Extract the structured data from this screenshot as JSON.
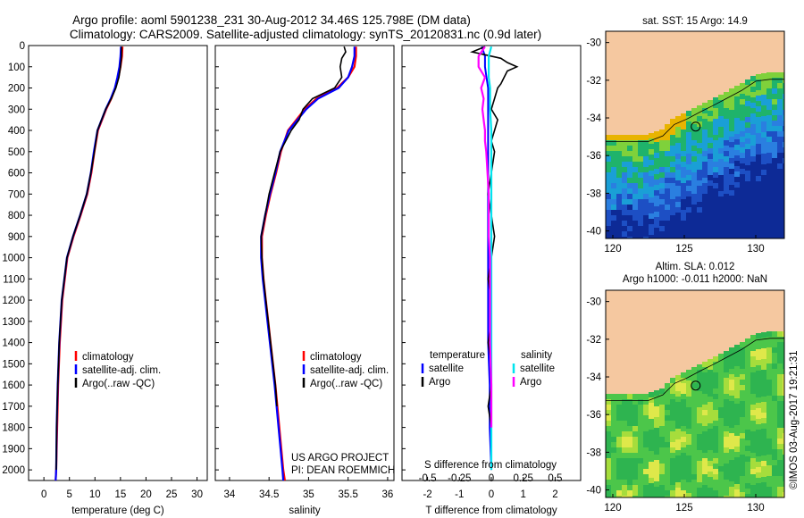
{
  "title": {
    "line1": "Argo profile: aoml 5901238_231 30-Aug-2012 34.46S 125.798E (DM data)",
    "line2": "Climatology: CARS2009. Satellite-adjusted climatology: synTS_20120831.nc (0.9d later)"
  },
  "depth_ticks": [
    "0",
    "100",
    "200",
    "300",
    "400",
    "500",
    "600",
    "700",
    "800",
    "900",
    "1000",
    "1100",
    "1200",
    "1300",
    "1400",
    "1500",
    "1600",
    "1700",
    "1800",
    "1900",
    "2000"
  ],
  "colors": {
    "climatology": "#ff0000",
    "satellite": "#0000ff",
    "argo": "#000000",
    "sal_satellite": "#00e5ee",
    "sal_argo": "#ff00ff",
    "land": "#f5c8a0"
  },
  "chart_data": [
    {
      "type": "line",
      "panel": "temperature",
      "xlabel": "temperature (deg C)",
      "xticks": [
        "0",
        "5",
        "10",
        "15",
        "20",
        "25",
        "30"
      ],
      "xlim": [
        -3,
        32
      ],
      "ylim": [
        0,
        2050
      ],
      "ylabel_axis": "depth",
      "legend": [
        "climatology",
        "satellite-adj. clim.",
        "Argo(..raw -QC)"
      ],
      "series": [
        {
          "name": "climatology",
          "depth": [
            5,
            50,
            100,
            150,
            200,
            250,
            300,
            400,
            500,
            600,
            700,
            800,
            900,
            1000,
            1200,
            1400,
            1600,
            1800,
            2000,
            2050
          ],
          "values": [
            15.4,
            15.3,
            15.0,
            14.6,
            14.0,
            13.2,
            12.2,
            10.6,
            9.9,
            9.3,
            8.5,
            7.2,
            5.8,
            4.6,
            3.6,
            3.1,
            2.8,
            2.6,
            2.4,
            2.3
          ]
        },
        {
          "name": "satellite-adj. clim.",
          "depth": [
            5,
            50,
            100,
            150,
            200,
            250,
            300,
            400,
            500,
            600,
            700,
            800,
            900,
            1000,
            1200,
            1400,
            1600,
            1800,
            2000,
            2050
          ],
          "values": [
            15.1,
            15.0,
            14.8,
            14.4,
            13.9,
            13.1,
            12.1,
            10.5,
            9.8,
            9.2,
            8.4,
            7.1,
            5.7,
            4.5,
            3.5,
            3.0,
            2.7,
            2.5,
            2.4,
            2.3
          ]
        },
        {
          "name": "Argo(..raw -QC)",
          "depth": [
            5,
            50,
            100,
            150,
            200,
            250,
            300,
            400,
            500,
            600,
            700,
            800,
            900,
            1000,
            1200,
            1400,
            1600,
            1800,
            2000
          ],
          "values": [
            15.2,
            15.2,
            15.0,
            14.7,
            14.1,
            13.2,
            12.1,
            10.5,
            9.9,
            9.2,
            8.4,
            7.1,
            5.7,
            4.5,
            3.5,
            3.0,
            2.7,
            2.5,
            2.4
          ]
        }
      ]
    },
    {
      "type": "line",
      "panel": "salinity",
      "xlabel": "salinity",
      "xticks": [
        "34",
        "34.5",
        "35",
        "35.5",
        "36"
      ],
      "xlim": [
        33.82,
        36.08
      ],
      "ylim": [
        0,
        2050
      ],
      "legend": [
        "climatology",
        "satellite-adj. clim.",
        "Argo(..raw -QC)"
      ],
      "annotation": [
        "US ARGO PROJECT",
        "PI: DEAN ROEMMICH"
      ],
      "series": [
        {
          "name": "climatology",
          "depth": [
            5,
            50,
            100,
            150,
            200,
            250,
            300,
            400,
            500,
            600,
            700,
            800,
            900,
            1000,
            1100,
            1200,
            1300,
            1400,
            1600,
            1800,
            2000,
            2050
          ],
          "values": [
            35.6,
            35.6,
            35.58,
            35.5,
            35.36,
            35.1,
            34.95,
            34.74,
            34.65,
            34.59,
            34.52,
            34.46,
            34.41,
            34.41,
            34.43,
            34.46,
            34.49,
            34.52,
            34.58,
            34.63,
            34.68,
            34.7
          ]
        },
        {
          "name": "satellite-adj. clim.",
          "depth": [
            5,
            50,
            100,
            150,
            200,
            250,
            300,
            400,
            500,
            600,
            700,
            800,
            900,
            1000,
            1100,
            1200,
            1300,
            1400,
            1600,
            1800,
            2000,
            2050
          ],
          "values": [
            35.58,
            35.58,
            35.55,
            35.5,
            35.38,
            35.12,
            34.97,
            34.75,
            34.64,
            34.58,
            34.51,
            34.45,
            34.4,
            34.4,
            34.42,
            34.45,
            34.48,
            34.51,
            34.57,
            34.62,
            34.67,
            34.68
          ]
        },
        {
          "name": "Argo(..raw -QC)",
          "depth": [
            5,
            30,
            60,
            100,
            150,
            200,
            250,
            300,
            350,
            400,
            500,
            600,
            700,
            800,
            900,
            1000,
            1100,
            1200,
            1300,
            1400,
            1600,
            1700
          ],
          "values": [
            35.45,
            35.47,
            35.42,
            35.4,
            35.42,
            35.33,
            35.05,
            34.93,
            34.88,
            34.78,
            34.64,
            34.57,
            34.5,
            34.45,
            34.4,
            34.41,
            34.43,
            34.46,
            34.49,
            34.52,
            34.58,
            34.6
          ]
        }
      ]
    },
    {
      "type": "line",
      "panel": "difference",
      "xlabel": "T difference from climatology",
      "xlabel2": "S difference from climatology",
      "xticks": [
        "-2",
        "-1",
        "0",
        "1",
        "2"
      ],
      "xticks2": [
        "-0.5",
        "-0.25",
        "0",
        "0.25",
        "0.5"
      ],
      "xlim": [
        -2.8,
        2.8
      ],
      "ylim": [
        0,
        2050
      ],
      "legend": {
        "temperature": "temperature",
        "salinity": "salinity",
        "t_satellite": "satellite",
        "t_argo": "Argo",
        "s_satellite": "satellite",
        "s_argo": "Argo"
      },
      "series": [
        {
          "name": "temperature satellite",
          "depth": [
            5,
            50,
            100,
            150,
            200,
            300,
            400,
            500,
            600,
            800,
            1000,
            1200,
            1400,
            1600,
            1800,
            2000
          ],
          "values": [
            -0.3,
            -0.2,
            -0.2,
            -0.15,
            -0.1,
            -0.1,
            -0.1,
            -0.1,
            -0.1,
            -0.1,
            -0.1,
            -0.1,
            -0.1,
            -0.05,
            -0.05,
            0.0
          ]
        },
        {
          "name": "temperature Argo",
          "depth": [
            5,
            30,
            60,
            80,
            100,
            120,
            150,
            180,
            200,
            250,
            300,
            350,
            400,
            450,
            500,
            600,
            700,
            800,
            900,
            1000,
            1100,
            1200,
            1300,
            1400,
            1500,
            1600,
            1700,
            1800,
            1900,
            2000
          ],
          "values": [
            -0.2,
            -0.6,
            0.3,
            0.5,
            0.8,
            0.5,
            0.4,
            0.3,
            0.2,
            0.1,
            0.0,
            0.2,
            0.1,
            0.0,
            0.1,
            0.0,
            -0.1,
            0.0,
            0.1,
            0.0,
            -0.1,
            0.0,
            0.0,
            -0.1,
            0.0,
            0.0,
            -0.1,
            0.0,
            0.0,
            0.0
          ]
        },
        {
          "name": "salinity satellite",
          "depth": [
            5,
            50,
            100,
            150,
            200,
            300,
            400,
            500,
            600,
            800,
            1000,
            1200,
            1400,
            1600,
            1800,
            2000
          ],
          "values": [
            0.0,
            -0.02,
            -0.02,
            -0.02,
            -0.01,
            -0.01,
            0.0,
            0.0,
            0.0,
            0.0,
            0.0,
            0.0,
            0.0,
            0.0,
            0.0,
            0.0
          ]
        },
        {
          "name": "salinity Argo",
          "depth": [
            5,
            50,
            100,
            150,
            200,
            250,
            300,
            350,
            400,
            450,
            500,
            600,
            700,
            800,
            900,
            1000,
            1200,
            1400,
            1600,
            1800
          ],
          "values": [
            -0.05,
            -0.1,
            -0.1,
            -0.05,
            -0.08,
            -0.06,
            -0.07,
            -0.06,
            -0.05,
            -0.05,
            -0.04,
            -0.03,
            -0.02,
            -0.02,
            -0.02,
            -0.01,
            -0.01,
            -0.01,
            0.0,
            0.0
          ]
        }
      ]
    },
    {
      "type": "heatmap",
      "panel": "sst-map",
      "title": "sat. SST: 15 Argo: 14.9",
      "xticks": [
        "120",
        "125",
        "130"
      ],
      "yticks": [
        "-30",
        "-32",
        "-34",
        "-36",
        "-38",
        "-40"
      ],
      "xlim": [
        119.5,
        132
      ],
      "ylim": [
        -40.4,
        -29.4
      ],
      "argo_position": {
        "lon": 125.798,
        "lat": -34.46
      }
    },
    {
      "type": "heatmap",
      "panel": "sla-map",
      "title": "Altim. SLA: 0.012",
      "subtitle": "Argo h1000: -0.011 h2000: NaN",
      "xticks": [
        "120",
        "125",
        "130"
      ],
      "yticks": [
        "-30",
        "-32",
        "-34",
        "-36",
        "-38",
        "-40"
      ],
      "xlim": [
        119.5,
        132
      ],
      "ylim": [
        -40.4,
        -29.4
      ],
      "argo_position": {
        "lon": 125.798,
        "lat": -34.46
      }
    }
  ],
  "credit": "©IMOS 03-Aug-2017 19:21:31"
}
